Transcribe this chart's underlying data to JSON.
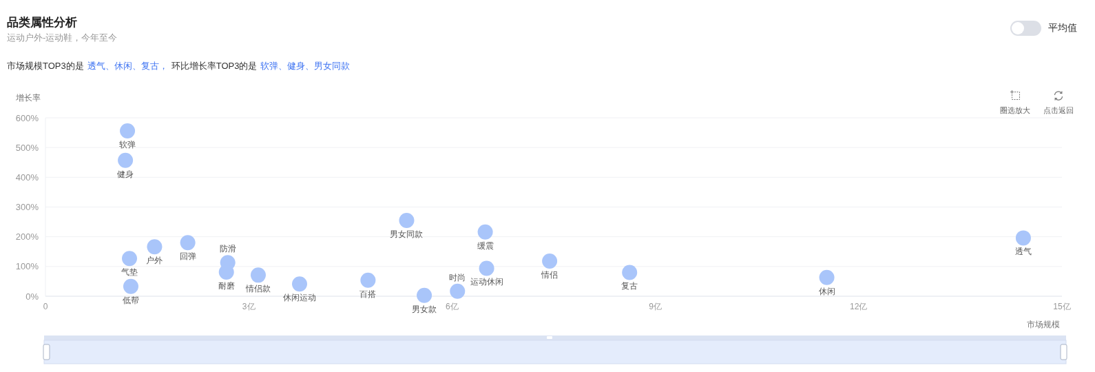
{
  "chart_data": {
    "type": "scatter",
    "title": "品类属性分析",
    "subtitle": "运动户外-运动鞋，今年至今",
    "annotations": [
      "市场规模TOP3的是",
      "透气、休闲、复古，",
      "环比增长率TOP3的是",
      "软弹、健身、男女同款",
      "平均值",
      "圈选放大",
      "点击返回"
    ],
    "xlabel": "市场规模",
    "ylabel": "增长率",
    "x": [
      1.21,
      1.18,
      1.24,
      1.26,
      1.61,
      2.1,
      2.69,
      2.67,
      3.14,
      3.75,
      4.76,
      5.33,
      5.59,
      6.08,
      6.49,
      6.51,
      7.44,
      8.62,
      11.53,
      14.43
    ],
    "values": [
      556,
      457,
      127,
      33,
      166,
      180,
      113,
      81,
      71,
      41,
      54,
      255,
      3,
      17,
      216,
      94,
      118,
      80,
      63,
      196
    ],
    "value_labels": [
      "软弹",
      "健身",
      "气垫",
      "低帮",
      "户外",
      "回弹",
      "防滑",
      "耐磨",
      "情侣款",
      "休闲运动",
      "百搭",
      "男女同款",
      "男女款",
      "时尚",
      "缓震",
      "运动休闲",
      "情侣",
      "复古",
      "休闲",
      "透气"
    ],
    "color": "#a9c5fa",
    "marker": "circle",
    "xlim": [
      0,
      15
    ],
    "xticks": [
      0,
      {
        "value": 3,
        "label": "3亿"
      },
      {
        "value": 6,
        "label": "6亿"
      },
      {
        "value": 9,
        "label": "9亿"
      },
      {
        "value": 12,
        "label": "12亿"
      },
      {
        "value": 15,
        "label": "15亿"
      }
    ],
    "ylim": [
      0,
      600
    ],
    "yticks": [
      {
        "value": 0,
        "label": "0%"
      },
      {
        "value": 100,
        "label": "100%"
      },
      {
        "value": 200,
        "label": "200%"
      },
      {
        "value": 300,
        "label": "300%"
      },
      {
        "value": 400,
        "label": "400%"
      },
      {
        "value": 500,
        "label": "500%"
      },
      {
        "value": 600,
        "label": "600%"
      }
    ],
    "grid": "y"
  }
}
